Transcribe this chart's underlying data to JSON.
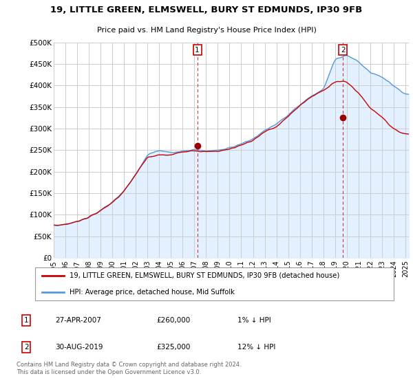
{
  "title": "19, LITTLE GREEN, ELMSWELL, BURY ST EDMUNDS, IP30 9FB",
  "subtitle": "Price paid vs. HM Land Registry's House Price Index (HPI)",
  "legend_line1": "19, LITTLE GREEN, ELMSWELL, BURY ST EDMUNDS, IP30 9FB (detached house)",
  "legend_line2": "HPI: Average price, detached house, Mid Suffolk",
  "annotation1_date": "27-APR-2007",
  "annotation1_price": "£260,000",
  "annotation1_hpi": "1% ↓ HPI",
  "annotation2_date": "30-AUG-2019",
  "annotation2_price": "£325,000",
  "annotation2_hpi": "12% ↓ HPI",
  "footer": "Contains HM Land Registry data © Crown copyright and database right 2024.\nThis data is licensed under the Open Government Licence v3.0.",
  "hpi_color": "#5599dd",
  "hpi_fill": "#ddeeff",
  "price_color": "#cc0000",
  "marker_color": "#990000",
  "background_fig": "#ffffff",
  "background_plot": "#ffffff",
  "grid_color": "#cccccc",
  "ylim": [
    0,
    500000
  ],
  "yticks": [
    0,
    50000,
    100000,
    150000,
    200000,
    250000,
    300000,
    350000,
    400000,
    450000,
    500000
  ],
  "year_start": 1995,
  "year_end": 2025,
  "sale1_year": 2007.33,
  "sale1_price": 260000,
  "sale2_year": 2019.67,
  "sale2_price": 325000,
  "hpi_anchors_x": [
    0,
    1,
    2,
    3,
    4,
    5,
    6,
    7,
    8,
    9,
    10,
    11,
    12,
    13,
    14,
    15,
    16,
    17,
    18,
    19,
    20,
    21,
    22,
    23,
    24,
    25,
    26,
    27,
    28,
    29,
    30
  ],
  "hpi_anchors_y": [
    75000,
    78000,
    85000,
    95000,
    110000,
    130000,
    155000,
    195000,
    240000,
    250000,
    245000,
    248000,
    252000,
    248000,
    250000,
    255000,
    265000,
    275000,
    295000,
    310000,
    330000,
    355000,
    375000,
    390000,
    460000,
    470000,
    455000,
    430000,
    420000,
    400000,
    380000
  ],
  "price_offset_anchors_x": [
    0,
    6,
    7,
    8,
    9,
    10,
    11,
    12,
    13,
    14,
    15,
    16,
    17,
    18,
    19,
    20,
    21,
    22,
    23,
    24,
    25,
    26,
    27,
    28,
    29,
    30
  ],
  "price_offset_anchors_y": [
    0,
    0,
    0,
    -5000,
    -10000,
    -5000,
    0,
    0,
    0,
    0,
    0,
    0,
    0,
    0,
    -5000,
    0,
    0,
    0,
    0,
    -50000,
    -60000,
    -70000,
    -80000,
    -90000,
    -100000,
    -90000
  ]
}
